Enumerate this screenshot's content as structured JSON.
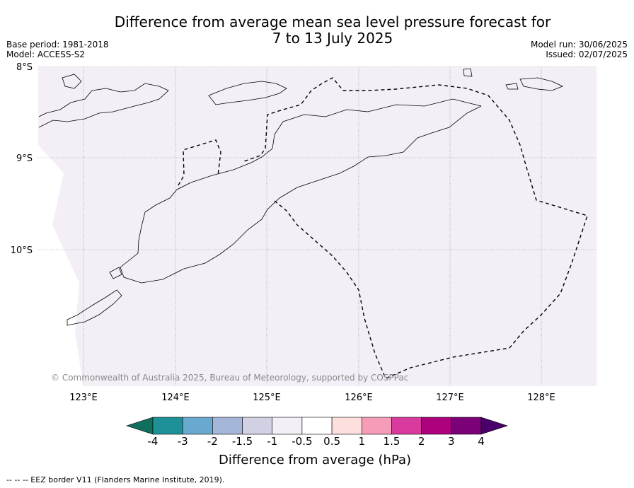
{
  "header": {
    "title_line1": "Difference from average mean sea level pressure forecast for",
    "title_line2": "7 to 13 July 2025",
    "base_period": "Base period: 1981-2018",
    "model": "Model: ACCESS-S2",
    "model_run": "Model run: 30/06/2025",
    "issued": "Issued: 02/07/2025"
  },
  "map": {
    "lat_labels": [
      "8°S",
      "9°S",
      "10°S"
    ],
    "lon_labels": [
      "123°E",
      "124°E",
      "125°E",
      "126°E",
      "127°E",
      "128°E"
    ],
    "fill_color": "#f4eef6",
    "copyright": "© Commonwealth of Australia 2025, Bureau of Meteorology, supported by COSPPac"
  },
  "colorbar": {
    "labels": [
      "-4",
      "-3",
      "-2",
      "-1.5",
      "-1",
      "-0.5",
      "0.5",
      "1",
      "1.5",
      "2",
      "3",
      "4"
    ],
    "colors": [
      "#0f6e5c",
      "#1e9098",
      "#6aa9cf",
      "#a5b7d8",
      "#d2d0e3",
      "#f4eef6",
      "#ffffff",
      "#fde0dd",
      "#f59cb8",
      "#d83a9d",
      "#ae017e",
      "#7a0177",
      "#49006a"
    ],
    "title": "Difference from average (hPa)"
  },
  "footnote": "--  --  -- EEZ border V11 (Flanders Marine Institute, 2019)."
}
